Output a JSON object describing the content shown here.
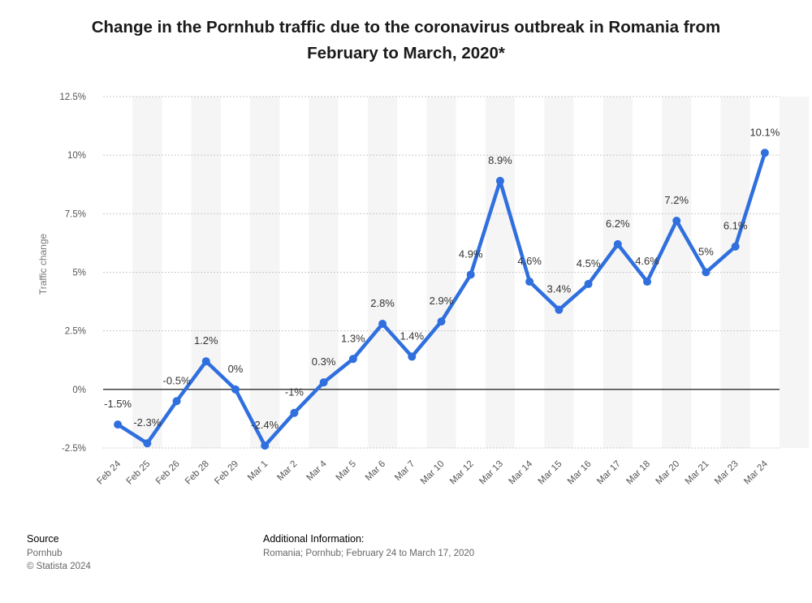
{
  "title_line1": "Change in the Pornhub traffic due to the coronavirus outbreak in Romania from",
  "title_line2": "February to March, 2020*",
  "footer": {
    "source_label": "Source",
    "source_name": "Pornhub",
    "copyright": "© Statista 2024",
    "additional_label": "Additional Information:",
    "additional_text": "Romania; Pornhub; February 24 to March 17, 2020"
  },
  "chart_data": {
    "type": "line",
    "ylabel": "Traffic change",
    "ylim": [
      -2.5,
      12.5
    ],
    "yticks": [
      -2.5,
      0,
      2.5,
      5,
      7.5,
      10,
      12.5
    ],
    "ytick_labels": [
      "-2.5%",
      "0%",
      "2.5%",
      "5%",
      "7.5%",
      "10%",
      "12.5%"
    ],
    "grid": true,
    "line_color": "#2f6fde",
    "categories": [
      "Feb 24",
      "Feb 25",
      "Feb 26",
      "Feb 28",
      "Feb 29",
      "Mar 1",
      "Mar 2",
      "Mar 4",
      "Mar 5",
      "Mar 6",
      "Mar 7",
      "Mar 10",
      "Mar 12",
      "Mar 13",
      "Mar 14",
      "Mar 15",
      "Mar 16",
      "Mar 17",
      "Mar 18",
      "Mar 20",
      "Mar 21",
      "Mar 23",
      "Mar 24"
    ],
    "values": [
      -1.5,
      -2.3,
      -0.5,
      1.2,
      0,
      -2.4,
      -1,
      0.3,
      1.3,
      2.8,
      1.4,
      2.9,
      4.9,
      8.9,
      4.6,
      3.4,
      4.5,
      6.2,
      4.6,
      7.2,
      5,
      6.1,
      10.1
    ],
    "data_labels": [
      "-1.5%",
      "-2.3%",
      "-0.5%",
      "1.2%",
      "0%",
      "-2.4%",
      "-1%",
      "0.3%",
      "1.3%",
      "2.8%",
      "1.4%",
      "2.9%",
      "4.9%",
      "8.9%",
      "4.6%",
      "3.4%",
      "4.5%",
      "6.2%",
      "4.6%",
      "7.2%",
      "5%",
      "6.1%",
      "10.1%"
    ]
  }
}
